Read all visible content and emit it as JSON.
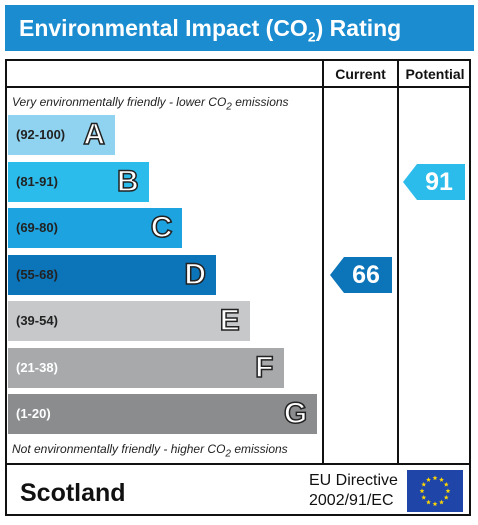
{
  "title": {
    "before": "Environmental Impact (CO",
    "sub": "2",
    "after": ") Rating"
  },
  "columns": {
    "current": "Current",
    "potential": "Potential"
  },
  "notes": {
    "top": {
      "before": "Very environmentally friendly - lower CO",
      "sub": "2",
      "after": " emissions"
    },
    "bottom": {
      "before": "Not environmentally friendly - higher CO",
      "sub": "2",
      "after": " emissions"
    }
  },
  "footer": {
    "region": "Scotland",
    "directive_line1": "EU Directive",
    "directive_line2": "2002/91/EC",
    "flag": "eu-flag-icon"
  },
  "chart_data": {
    "type": "bar",
    "title": "Environmental Impact (CO2) Rating",
    "categories": [
      "(92-100)",
      "(81-91)",
      "(69-80)",
      "(55-68)",
      "(39-54)",
      "(21-38)",
      "(1-20)"
    ],
    "bands": [
      {
        "range": "(92-100)",
        "letter": "A",
        "color": "#8fd3f0",
        "light_text": false
      },
      {
        "range": "(81-91)",
        "letter": "B",
        "color": "#2bbcec",
        "light_text": false
      },
      {
        "range": "(69-80)",
        "letter": "C",
        "color": "#1ca3e0",
        "light_text": false
      },
      {
        "range": "(55-68)",
        "letter": "D",
        "color": "#0c74b8",
        "light_text": false
      },
      {
        "range": "(39-54)",
        "letter": "E",
        "color": "#c6c8ca",
        "light_text": false
      },
      {
        "range": "(21-38)",
        "letter": "F",
        "color": "#a7a9ab",
        "light_text": true
      },
      {
        "range": "(1-20)",
        "letter": "G",
        "color": "#8a8c8e",
        "light_text": true
      }
    ],
    "current": {
      "value": 66,
      "band": "D",
      "color": "#0c74b8"
    },
    "potential": {
      "value": 91,
      "band": "B",
      "color": "#2bbcec"
    }
  }
}
